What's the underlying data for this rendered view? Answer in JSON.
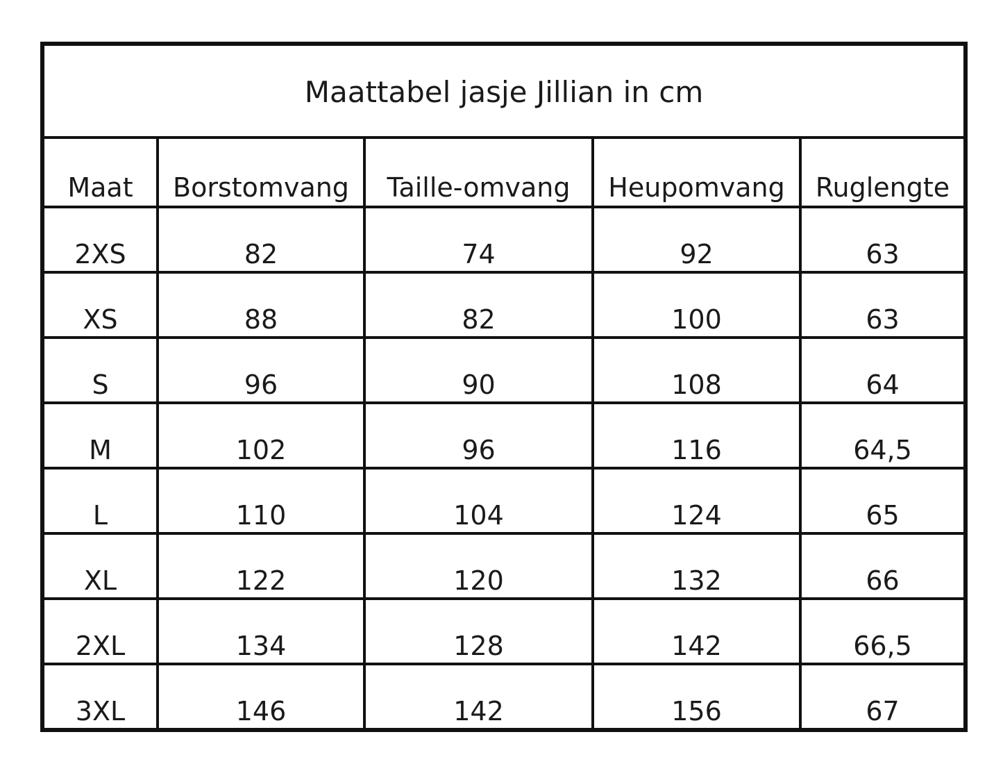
{
  "title": "Maattabel jasje Jillian in cm",
  "columns": [
    "Maat",
    "Borstomvang",
    "Taille-omvang",
    "Heupomvang",
    "Ruglengte"
  ],
  "rows": [
    [
      "2XS",
      "82",
      "74",
      "92",
      "63"
    ],
    [
      "XS",
      "88",
      "82",
      "100",
      "63"
    ],
    [
      "S",
      "96",
      "90",
      "108",
      "64"
    ],
    [
      "M",
      "102",
      "96",
      "116",
      "64,5"
    ],
    [
      "L",
      "110",
      "104",
      "124",
      "65"
    ],
    [
      "XL",
      "122",
      "120",
      "132",
      "66"
    ],
    [
      "2XL",
      "134",
      "128",
      "142",
      "66,5"
    ],
    [
      "3XL",
      "146",
      "142",
      "156",
      "67"
    ]
  ]
}
